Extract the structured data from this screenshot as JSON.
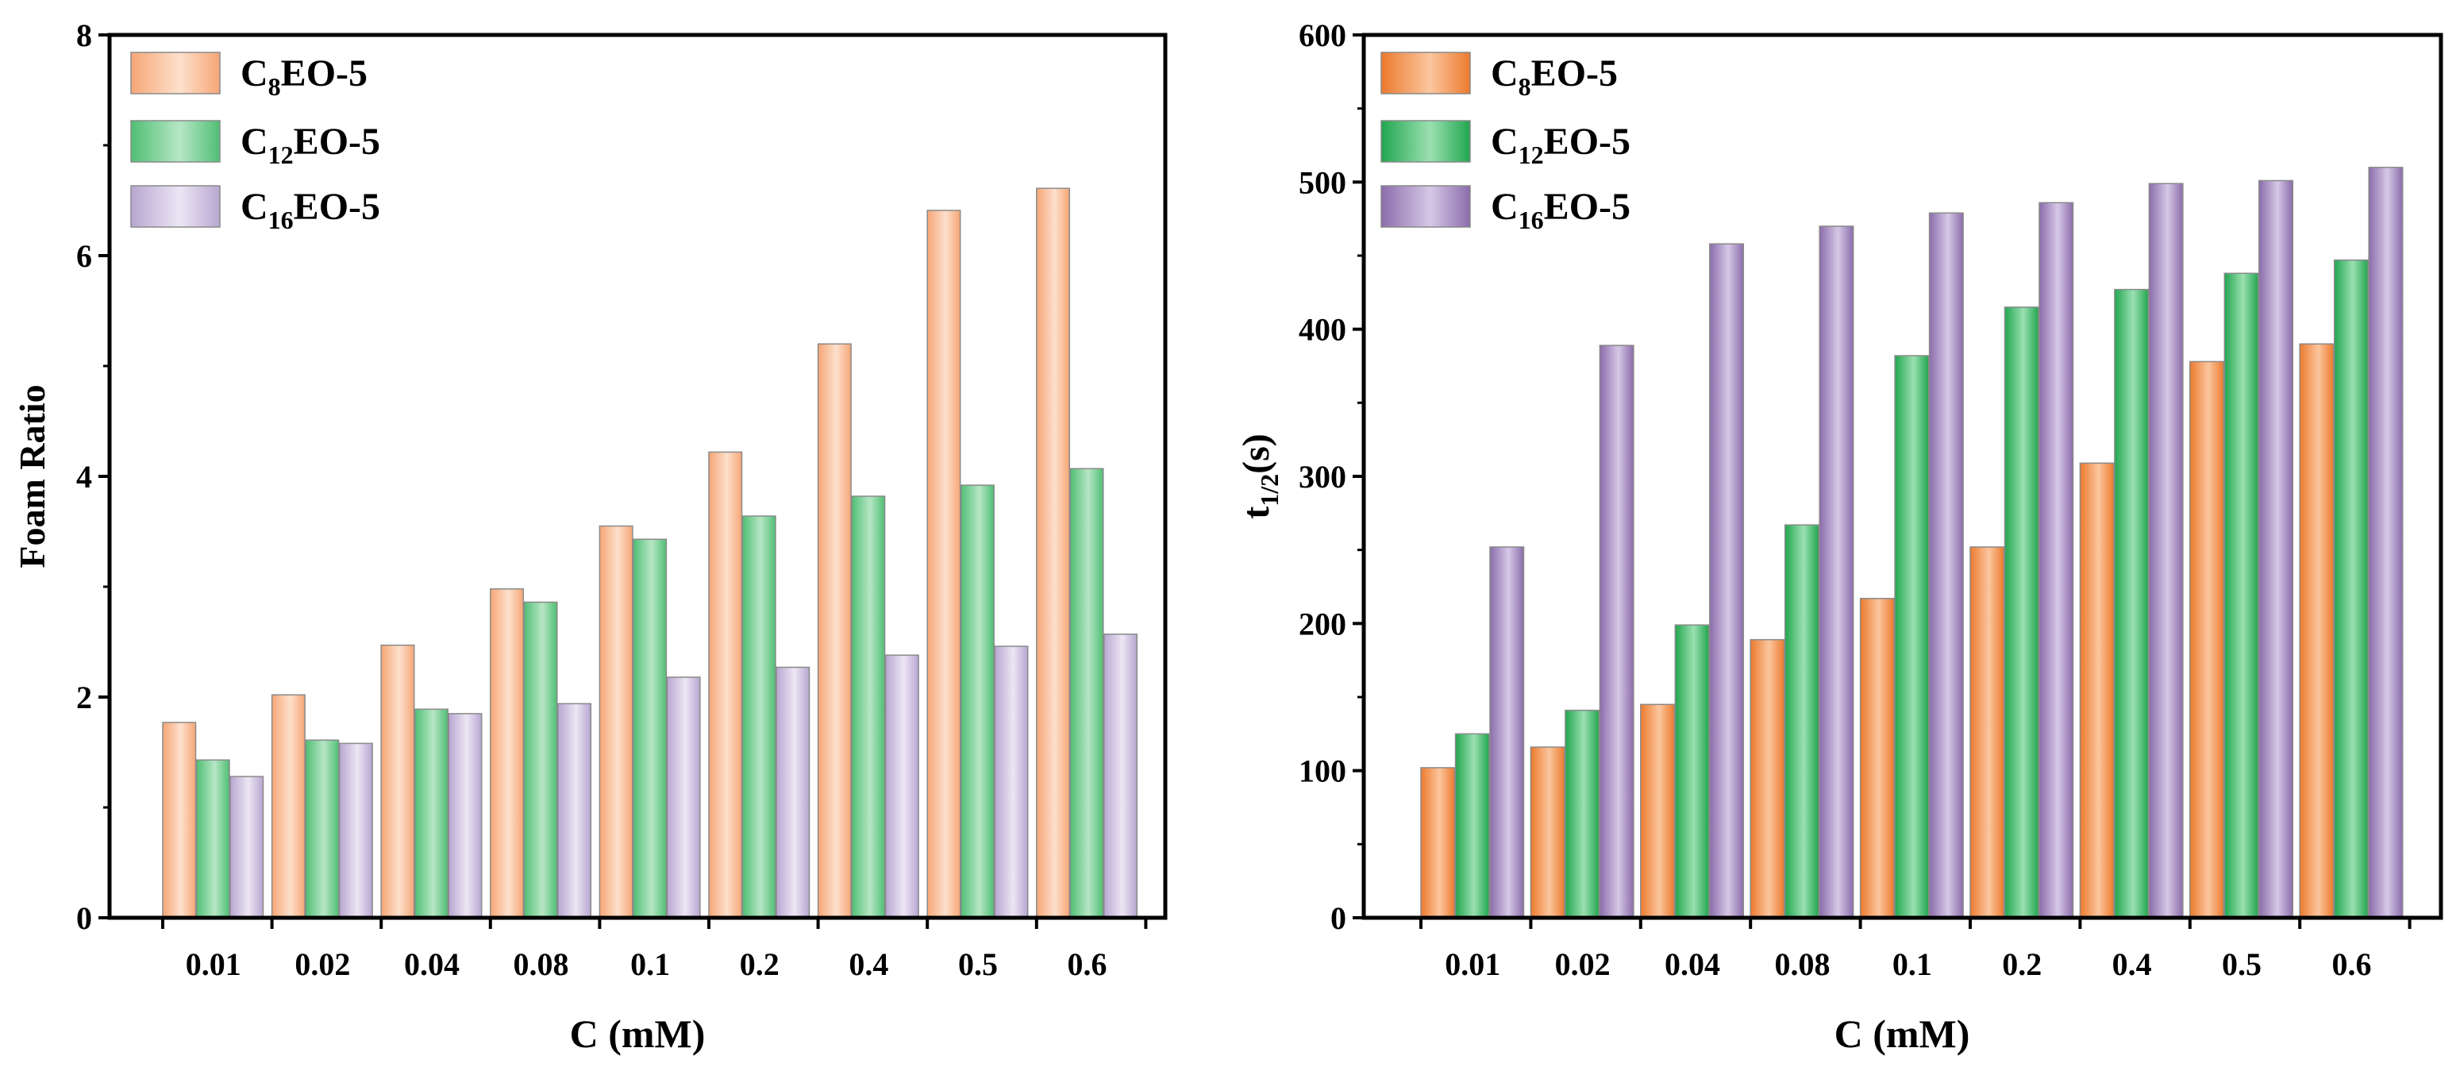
{
  "chart_data": [
    {
      "type": "bar",
      "categories": [
        "0.01",
        "0.02",
        "0.04",
        "0.08",
        "0.1",
        "0.2",
        "0.4",
        "0.5",
        "0.6"
      ],
      "series": [
        {
          "name": "C8EO-5",
          "base": "C",
          "sub": "8",
          "suffix": "EO-5",
          "values": [
            1.77,
            2.02,
            2.47,
            2.98,
            3.55,
            4.22,
            5.2,
            6.41,
            6.61
          ]
        },
        {
          "name": "C12EO-5",
          "base": "C",
          "sub": "12",
          "suffix": "EO-5",
          "values": [
            1.43,
            1.61,
            1.89,
            2.86,
            3.43,
            3.64,
            3.82,
            3.92,
            4.07
          ]
        },
        {
          "name": "C16EO-5",
          "base": "C",
          "sub": "16",
          "suffix": "EO-5",
          "values": [
            1.28,
            1.58,
            1.85,
            1.94,
            2.18,
            2.27,
            2.38,
            2.46,
            2.57
          ]
        }
      ],
      "xlabel": "C (mM)",
      "ylabel": "Foam Ratio",
      "ylim": [
        0,
        8
      ],
      "yticks": [
        "0",
        "2",
        "4",
        "6",
        "8"
      ],
      "legend_position": "top-left",
      "grid": false
    },
    {
      "type": "bar",
      "categories": [
        "0.01",
        "0.02",
        "0.04",
        "0.08",
        "0.1",
        "0.2",
        "0.4",
        "0.5",
        "0.6"
      ],
      "series": [
        {
          "name": "C8EO-5",
          "base": "C",
          "sub": "8",
          "suffix": "EO-5",
          "values": [
            102,
            116,
            145,
            189,
            217,
            252,
            309,
            378,
            390
          ]
        },
        {
          "name": "C12EO-5",
          "base": "C",
          "sub": "12",
          "suffix": "EO-5",
          "values": [
            125,
            141,
            199,
            267,
            382,
            415,
            427,
            438,
            447
          ]
        },
        {
          "name": "C16EO-5",
          "base": "C",
          "sub": "16",
          "suffix": "EO-5",
          "values": [
            252,
            389,
            458,
            470,
            479,
            486,
            499,
            501,
            510
          ]
        }
      ],
      "xlabel": "C (mM)",
      "ylabel_base": "t",
      "ylabel_sub": "1/2",
      "ylabel_suffix": "(s)",
      "ylim": [
        0,
        600
      ],
      "yticks": [
        "0",
        "100",
        "200",
        "300",
        "400",
        "500",
        "600"
      ],
      "legend_position": "top-left",
      "grid": false
    }
  ],
  "colors": {
    "left": {
      "s0": [
        "#f6a676",
        "#fde0cc"
      ],
      "s1": [
        "#4fbf74",
        "#b7e6c5"
      ],
      "s2": [
        "#b7a6d1",
        "#ece6f4"
      ]
    },
    "right": {
      "s0": [
        "#ec7a2e",
        "#fbc69e"
      ],
      "s1": [
        "#21a64f",
        "#9be0b1"
      ],
      "s2": [
        "#8a6cab",
        "#d6c8e6"
      ]
    },
    "stroke": "#8a8a8a"
  }
}
